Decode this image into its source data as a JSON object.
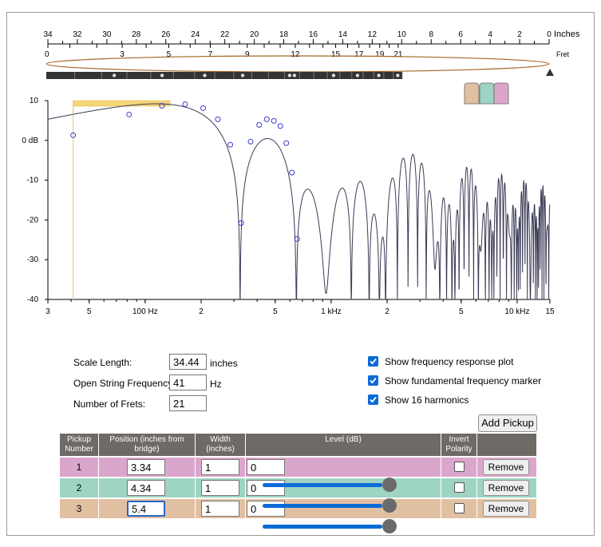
{
  "ruler": {
    "unit_label": "Inches",
    "fret_label": "Fret",
    "inch_ticks": [
      "34",
      "32",
      "30",
      "28",
      "26",
      "24",
      "22",
      "20",
      "18",
      "16",
      "14",
      "12",
      "10",
      "8",
      "6",
      "4",
      "2",
      "0"
    ],
    "inch_end_tick": "0",
    "fret_ticks": [
      "3",
      "5",
      "7",
      "9",
      "12",
      "15",
      "17",
      "19",
      "21"
    ],
    "zero_label": "0"
  },
  "chart_data": {
    "type": "line",
    "xscale": "log",
    "xlim": [
      30,
      15000
    ],
    "ylim": [
      -40,
      10
    ],
    "x_tick_labels": [
      "3",
      "5",
      "100 Hz",
      "2",
      "5",
      "1 kHz",
      "2",
      "5",
      "10 kHz",
      "15"
    ],
    "y_tick_labels": [
      "10",
      "0 dB",
      "-10",
      "-20",
      "-30",
      "-40"
    ],
    "fundamental_hz": 41,
    "harmonic_markers": [
      {
        "hz": 41,
        "db": 1.3
      },
      {
        "hz": 82,
        "db": 6.5
      },
      {
        "hz": 123,
        "db": 8.7
      },
      {
        "hz": 164,
        "db": 9.1
      },
      {
        "hz": 205,
        "db": 8.1
      },
      {
        "hz": 246,
        "db": 5.3
      },
      {
        "hz": 287,
        "db": -1.1
      },
      {
        "hz": 328,
        "db": -20.8
      },
      {
        "hz": 369,
        "db": -0.3
      },
      {
        "hz": 410,
        "db": 3.9
      },
      {
        "hz": 451,
        "db": 5.3
      },
      {
        "hz": 492,
        "db": 4.9
      },
      {
        "hz": 533,
        "db": 3.6
      },
      {
        "hz": 574,
        "db": -0.7
      },
      {
        "hz": 615,
        "db": -8.1
      },
      {
        "hz": 656,
        "db": -24.8
      }
    ]
  },
  "settings": {
    "scale_length_label": "Scale Length:",
    "scale_length_value": "34.44",
    "scale_length_unit": "inches",
    "open_freq_label": "Open String Frequency:",
    "open_freq_value": "41",
    "open_freq_unit": "Hz",
    "frets_label": "Number of Frets:",
    "frets_value": "21"
  },
  "options": {
    "show_response": {
      "label": "Show frequency response plot",
      "checked": true
    },
    "show_fundamental": {
      "label": "Show fundamental frequency marker",
      "checked": true
    },
    "show_harmonics": {
      "label": "Show 16 harmonics",
      "checked": true
    }
  },
  "add_pickup_label": "Add Pickup",
  "table": {
    "headers": {
      "number": "Pickup Number",
      "position": "Position (inches from bridge)",
      "width": "Width (inches)",
      "level": "Level (dB)",
      "invert": "Invert Polarity"
    },
    "pickups": [
      {
        "number": "1",
        "position": "3.34",
        "width": "1",
        "level": "0",
        "level_fraction": 1.0,
        "invert": false,
        "color": "#dba6cc",
        "remove_label": "Remove"
      },
      {
        "number": "2",
        "position": "4.34",
        "width": "1",
        "level": "0",
        "level_fraction": 1.0,
        "invert": false,
        "color": "#9ed4c4",
        "remove_label": "Remove"
      },
      {
        "number": "3",
        "position": "5.4",
        "width": "1",
        "level": "0",
        "level_fraction": 1.0,
        "invert": false,
        "color": "#e1c0a2",
        "remove_label": "Remove"
      }
    ]
  },
  "colors": {
    "pickup_1": "#dba6cc",
    "pickup_2": "#9ed4c4",
    "pickup_3": "#e1c0a2",
    "header_bg": "#6e6b66",
    "accent": "#0b6bd7",
    "curve": "#3a3a55",
    "marker": "#3c3ccc",
    "fundamental_marker": "#f5d67a",
    "string_oval": "#a46524"
  }
}
